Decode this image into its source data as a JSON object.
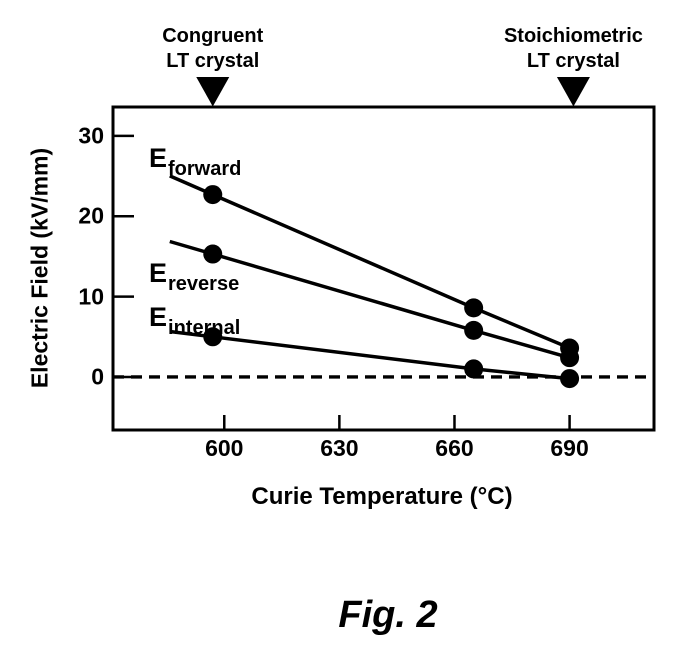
{
  "figure": {
    "caption": "Fig. 2"
  },
  "chart_data": {
    "type": "line",
    "title": "",
    "xlabel": "Curie Temperature (°C)",
    "ylabel": "Electric Field (kV/mm)",
    "xlim": [
      571,
      712
    ],
    "ylim": [
      -6.6,
      33.6
    ],
    "x_ticks": [
      600,
      630,
      660,
      690
    ],
    "x_tick_labels": [
      "600",
      "630",
      "660",
      "690"
    ],
    "y_ticks": [
      0,
      10,
      20,
      30
    ],
    "y_tick_labels": [
      "0",
      "10",
      "20",
      "30"
    ],
    "grid": false,
    "legend": "inline-labels",
    "zero_line_style": "dashed",
    "marker_style": "filled-circle",
    "line_color": "#000000",
    "background_color": "#ffffff",
    "series": [
      {
        "name": "E_forward",
        "label_main": "E",
        "label_sub": "forward",
        "x": [
          597,
          665,
          690
        ],
        "y": [
          22.7,
          8.6,
          3.6
        ]
      },
      {
        "name": "E_reverse",
        "label_main": "E",
        "label_sub": "reverse",
        "x": [
          597,
          665,
          690
        ],
        "y": [
          15.3,
          5.8,
          2.4
        ]
      },
      {
        "name": "E_internal",
        "label_main": "E",
        "label_sub": "internal",
        "x": [
          597,
          665,
          690
        ],
        "y": [
          5.0,
          1.0,
          -0.2
        ]
      }
    ],
    "top_markers": [
      {
        "label_line1": "Congruent",
        "label_line2": "LT crystal",
        "x": 597,
        "symbol": "filled-down-triangle"
      },
      {
        "label_line1": "Stoichiometric",
        "label_line2": "LT crystal",
        "x": 691,
        "symbol": "filled-down-triangle"
      }
    ]
  }
}
